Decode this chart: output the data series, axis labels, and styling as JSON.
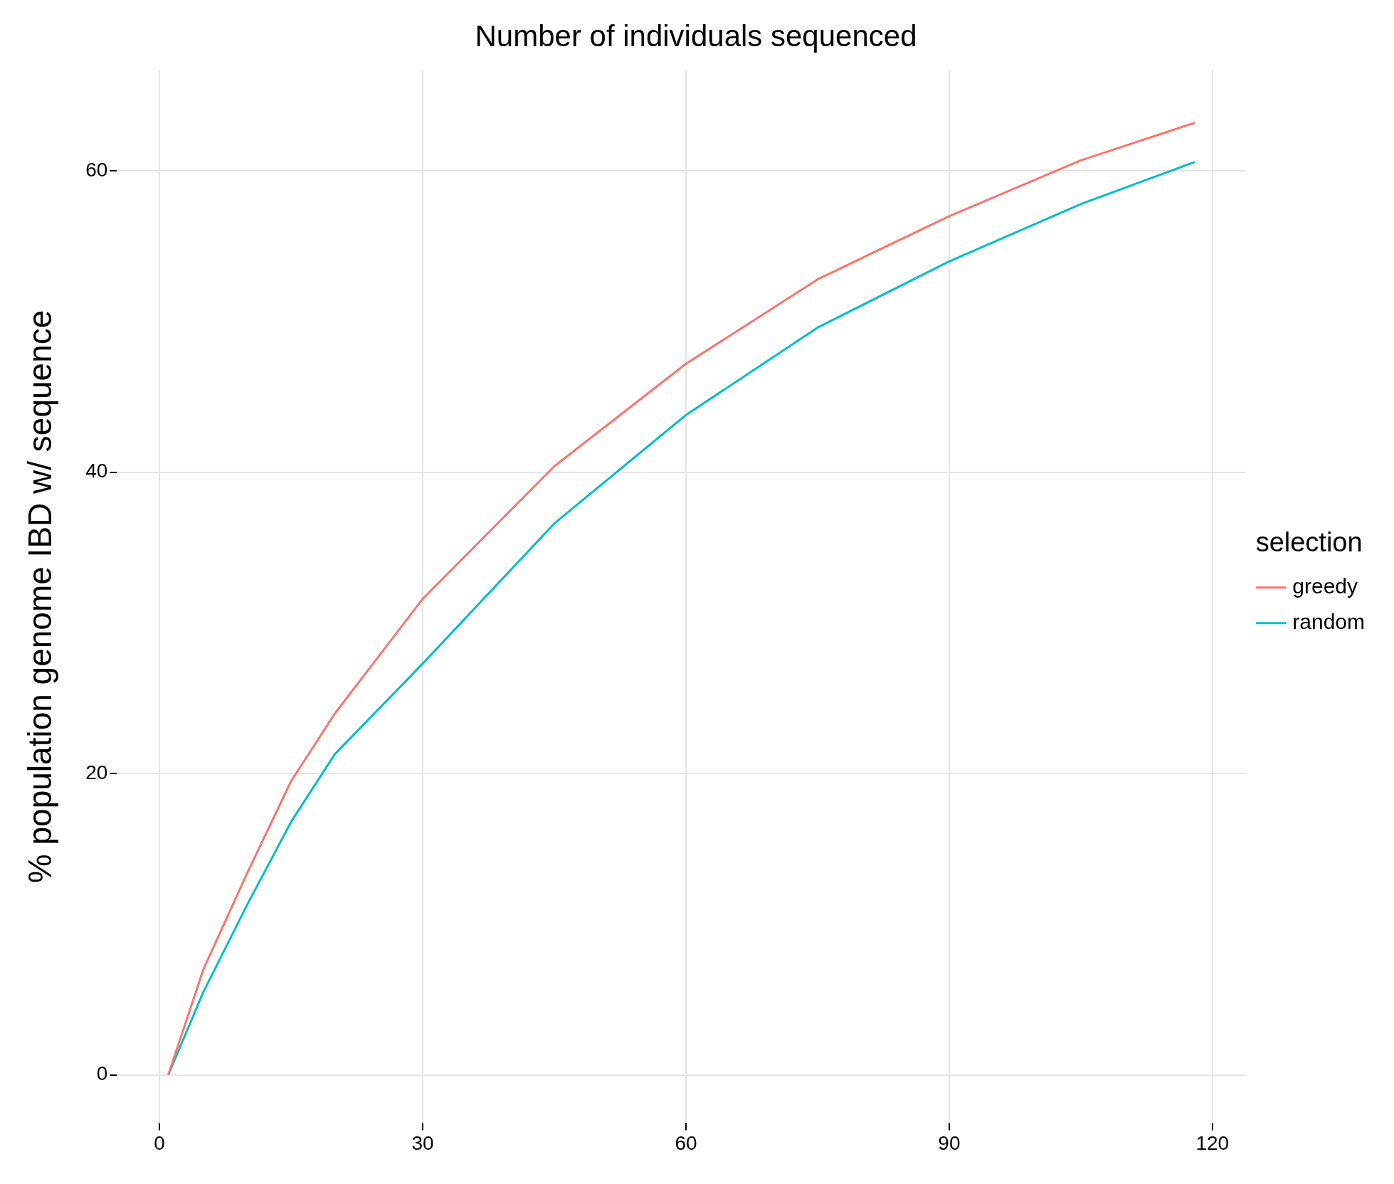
{
  "chart_data": {
    "type": "line",
    "title": "Number of individuals sequenced",
    "ylabel": "% population genome IBD w/ sequence",
    "legend_title": "selection",
    "legend": "right",
    "grid": true,
    "marker": "none",
    "line_style": "solid",
    "xlim": [
      -4.85,
      123.85
    ],
    "xticks": [
      0,
      30,
      60,
      90,
      120
    ],
    "ylim": [
      -3.2,
      66.7
    ],
    "yticks": [
      0,
      20,
      40,
      60
    ],
    "series": [
      {
        "name": "greedy",
        "color": "#f8766d",
        "x": [
          1,
          5,
          10,
          15,
          20,
          30,
          45,
          60,
          75,
          90,
          105,
          118
        ],
        "values": [
          0,
          7,
          13.4,
          19.5,
          24,
          31.6,
          40.4,
          47.2,
          52.8,
          57,
          60.7,
          63.2
        ]
      },
      {
        "name": "random",
        "color": "#00bfc4",
        "x": [
          1,
          5,
          10,
          15,
          20,
          30,
          45,
          60,
          75,
          90,
          105,
          118
        ],
        "values": [
          0,
          5.5,
          11.3,
          16.8,
          21.3,
          27.3,
          36.6,
          43.8,
          49.6,
          54,
          57.8,
          60.6
        ]
      }
    ]
  }
}
